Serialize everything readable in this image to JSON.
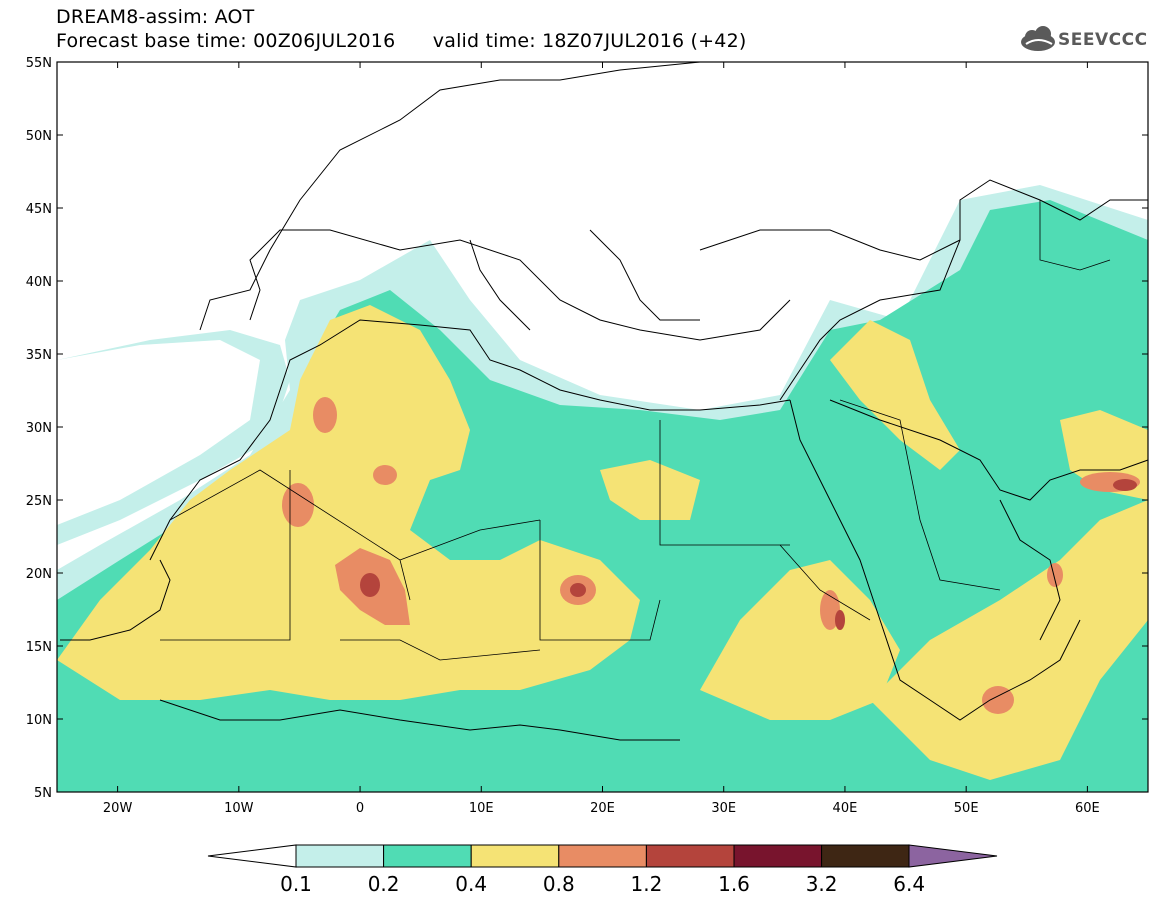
{
  "header": {
    "title_line1": "DREAM8-assim: AOT",
    "title_line2": "Forecast base time: 00Z06JUL2016      valid time: 18Z07JUL2016 (+42)",
    "logo_text": "SEEVCCC",
    "logo_icon": "cloud-icon"
  },
  "map": {
    "lon_range": [
      -25,
      65
    ],
    "lat_range": [
      5,
      55
    ],
    "lat_ticks": [
      "55N",
      "50N",
      "45N",
      "40N",
      "35N",
      "30N",
      "25N",
      "20N",
      "15N",
      "10N",
      "5N"
    ],
    "lon_ticks": [
      "20W",
      "10W",
      "0",
      "10E",
      "20E",
      "30E",
      "40E",
      "50E",
      "60E"
    ],
    "background_color": "#ffffff"
  },
  "colorbar": {
    "labels": [
      "0.1",
      "0.2",
      "0.4",
      "0.8",
      "1.2",
      "1.6",
      "3.2",
      "6.4"
    ],
    "colors": [
      "#ffffff",
      "#c4efea",
      "#50dcb4",
      "#f5e375",
      "#e88c64",
      "#b4443c",
      "#78142d",
      "#3e2614",
      "#8c64a0"
    ]
  }
}
